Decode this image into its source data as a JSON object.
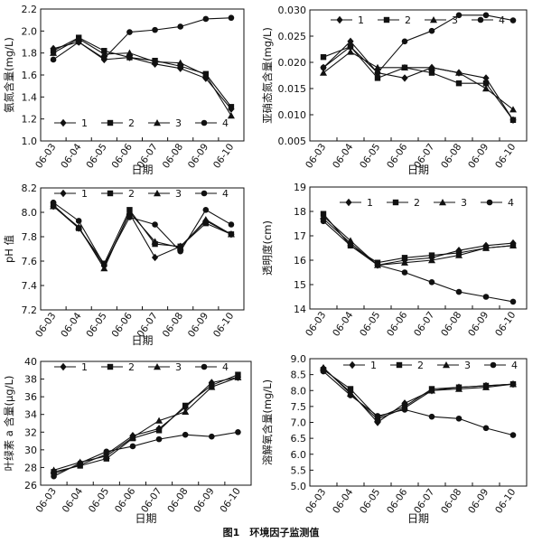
{
  "caption": "图1　环境因子监测值",
  "chart_data": [
    {
      "type": "line",
      "ylabel": "氨氮含量(mg/L)",
      "xlabel": "日期",
      "categories": [
        "06-03",
        "06-04",
        "06-05",
        "06-06",
        "06-07",
        "06-08",
        "06-09",
        "06-10"
      ],
      "ylim": [
        1.0,
        2.2
      ],
      "yticks": [
        "1.0",
        "1.2",
        "1.4",
        "1.6",
        "1.8",
        "2.0",
        "2.2"
      ],
      "legend_position": "bottom-left",
      "series": [
        {
          "name": "1",
          "marker": "diamond",
          "values": [
            1.84,
            1.9,
            1.74,
            1.76,
            1.7,
            1.66,
            1.57,
            1.29
          ]
        },
        {
          "name": "2",
          "marker": "square",
          "values": [
            1.82,
            1.94,
            1.82,
            1.76,
            1.73,
            1.68,
            1.61,
            1.31
          ]
        },
        {
          "name": "3",
          "marker": "triangle",
          "values": [
            1.8,
            1.93,
            1.79,
            1.8,
            1.72,
            1.71,
            1.6,
            1.23
          ]
        },
        {
          "name": "4",
          "marker": "circle",
          "values": [
            1.74,
            1.9,
            1.75,
            1.99,
            2.01,
            2.04,
            2.11,
            2.12
          ]
        }
      ]
    },
    {
      "type": "line",
      "ylabel": "亚硝态氮含量(mg/L)",
      "xlabel": "日期",
      "categories": [
        "06-03",
        "06-04",
        "06-05",
        "06-06",
        "06-07",
        "06-08",
        "06-09",
        "06-10"
      ],
      "ylim": [
        0.005,
        0.03
      ],
      "yticks": [
        "0.005",
        "0.010",
        "0.015",
        "0.020",
        "0.025",
        "0.030"
      ],
      "legend_position": "top",
      "series": [
        {
          "name": "1",
          "marker": "diamond",
          "values": [
            0.019,
            0.024,
            0.018,
            0.017,
            0.019,
            0.018,
            0.017,
            0.009
          ]
        },
        {
          "name": "2",
          "marker": "square",
          "values": [
            0.021,
            0.023,
            0.017,
            0.019,
            0.018,
            0.016,
            0.016,
            0.009
          ]
        },
        {
          "name": "3",
          "marker": "triangle",
          "values": [
            0.018,
            0.022,
            0.019,
            0.019,
            0.019,
            0.018,
            0.015,
            0.011
          ]
        },
        {
          "name": "4",
          "marker": "circle",
          "values": [
            0.019,
            0.023,
            0.018,
            0.024,
            0.026,
            0.029,
            0.029,
            0.028
          ]
        }
      ]
    },
    {
      "type": "line",
      "ylabel": "pH 值",
      "xlabel": "日期",
      "categories": [
        "06-03",
        "06-04",
        "06-05",
        "06-06",
        "06-07",
        "06-08",
        "06-09",
        "06-10"
      ],
      "ylim": [
        7.2,
        8.2
      ],
      "yticks": [
        "7.2",
        "7.4",
        "7.6",
        "7.8",
        "8.0",
        "8.2"
      ],
      "legend_position": "top",
      "series": [
        {
          "name": "1",
          "marker": "diamond",
          "values": [
            8.05,
            7.87,
            7.56,
            7.99,
            7.63,
            7.72,
            7.93,
            7.82
          ]
        },
        {
          "name": "2",
          "marker": "square",
          "values": [
            8.06,
            7.87,
            7.58,
            8.02,
            7.74,
            7.72,
            7.91,
            7.82
          ]
        },
        {
          "name": "3",
          "marker": "triangle",
          "values": [
            8.05,
            7.88,
            7.54,
            8.0,
            7.76,
            7.71,
            7.94,
            7.82
          ]
        },
        {
          "name": "4",
          "marker": "circle",
          "values": [
            8.08,
            7.93,
            7.57,
            7.96,
            7.9,
            7.68,
            8.02,
            7.9
          ]
        }
      ]
    },
    {
      "type": "line",
      "ylabel": "透明度(cm)",
      "xlabel": "",
      "categories": [
        "06-03",
        "06-04",
        "06-05",
        "06-06",
        "06-07",
        "06-08",
        "06-09",
        "06-10"
      ],
      "ylim": [
        14,
        19
      ],
      "yticks": [
        "14",
        "15",
        "16",
        "17",
        "18",
        "19"
      ],
      "legend_position": "top",
      "series": [
        {
          "name": "1",
          "marker": "diamond",
          "values": [
            17.7,
            16.7,
            15.8,
            16.0,
            16.1,
            16.4,
            16.6,
            16.7
          ]
        },
        {
          "name": "2",
          "marker": "square",
          "values": [
            17.9,
            16.6,
            15.9,
            16.1,
            16.2,
            16.3,
            16.5,
            16.6
          ]
        },
        {
          "name": "3",
          "marker": "triangle",
          "values": [
            17.8,
            16.8,
            15.8,
            15.9,
            16.0,
            16.2,
            16.5,
            16.6
          ]
        },
        {
          "name": "4",
          "marker": "circle",
          "values": [
            17.6,
            16.6,
            15.8,
            15.5,
            15.1,
            14.7,
            14.5,
            14.3
          ]
        }
      ]
    },
    {
      "type": "line",
      "ylabel": "叶绿素 a 含量(μg/L)",
      "xlabel": "日期",
      "categories": [
        "06-03",
        "06-04",
        "06-05",
        "06-06",
        "06-07",
        "06-08",
        "06-09",
        "06-10"
      ],
      "ylim": [
        26,
        40
      ],
      "yticks": [
        "26",
        "28",
        "30",
        "32",
        "34",
        "36",
        "38",
        "40"
      ],
      "legend_position": "top",
      "series": [
        {
          "name": "1",
          "marker": "diamond",
          "values": [
            27.3,
            28.3,
            29.5,
            31.6,
            32.4,
            34.8,
            37.6,
            38.2
          ]
        },
        {
          "name": "2",
          "marker": "square",
          "values": [
            27.5,
            28.2,
            29.0,
            31.3,
            32.2,
            35.0,
            37.3,
            38.5
          ]
        },
        {
          "name": "3",
          "marker": "triangle",
          "values": [
            27.7,
            28.6,
            29.3,
            31.4,
            33.3,
            34.3,
            37.1,
            38.2
          ]
        },
        {
          "name": "4",
          "marker": "circle",
          "values": [
            27.0,
            28.5,
            29.8,
            30.4,
            31.2,
            31.7,
            31.5,
            32.0
          ]
        }
      ]
    },
    {
      "type": "line",
      "ylabel": "溶解氧含量(mg/L)",
      "xlabel": "日期",
      "categories": [
        "06-03",
        "06-04",
        "06-05",
        "06-06",
        "06-07",
        "06-08",
        "06-09",
        "06-10"
      ],
      "ylim": [
        5.0,
        9.0
      ],
      "yticks": [
        "5.0",
        "5.5",
        "6.0",
        "6.5",
        "7.0",
        "7.5",
        "8.0",
        "8.5",
        "9.0"
      ],
      "legend_position": "top",
      "series": [
        {
          "name": "1",
          "marker": "diamond",
          "values": [
            8.7,
            7.95,
            7.0,
            7.6,
            8.0,
            8.1,
            8.15,
            8.2
          ]
        },
        {
          "name": "2",
          "marker": "square",
          "values": [
            8.65,
            8.05,
            7.15,
            7.5,
            8.05,
            8.1,
            8.15,
            8.2
          ]
        },
        {
          "name": "3",
          "marker": "triangle",
          "values": [
            8.72,
            7.9,
            7.1,
            7.45,
            8.0,
            8.05,
            8.1,
            8.2
          ]
        },
        {
          "name": "4",
          "marker": "circle",
          "values": [
            8.6,
            7.85,
            7.2,
            7.4,
            7.18,
            7.12,
            6.82,
            6.6
          ]
        }
      ]
    }
  ]
}
